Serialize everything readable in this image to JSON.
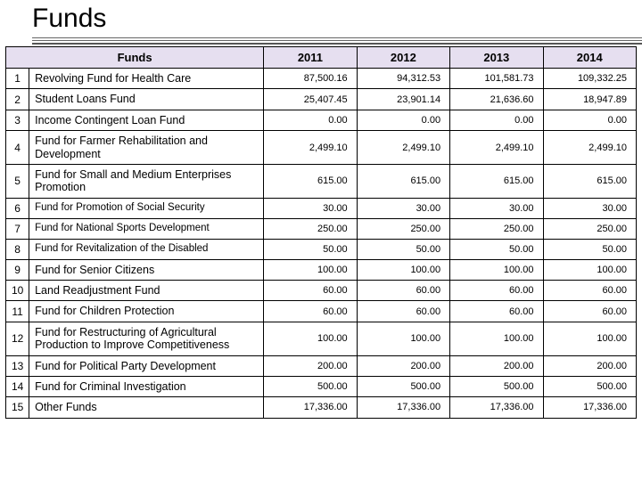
{
  "title": "Funds",
  "table": {
    "header_label": "Funds",
    "columns": [
      "2011",
      "2012",
      "2013",
      "2014"
    ],
    "header_bg": "#e6dff0",
    "border_color": "#000000",
    "rows": [
      {
        "n": "1",
        "name": "Revolving Fund for Health Care",
        "v": [
          "87,500.16",
          "94,312.53",
          "101,581.73",
          "109,332.25"
        ]
      },
      {
        "n": "2",
        "name": "Student Loans Fund",
        "v": [
          "25,407.45",
          "23,901.14",
          "21,636.60",
          "18,947.89"
        ]
      },
      {
        "n": "3",
        "name": "Income Contingent Loan Fund",
        "v": [
          "0.00",
          "0.00",
          "0.00",
          "0.00"
        ]
      },
      {
        "n": "4",
        "name": "Fund for Farmer Rehabilitation and Development",
        "v": [
          "2,499.10",
          "2,499.10",
          "2,499.10",
          "2,499.10"
        ]
      },
      {
        "n": "5",
        "name": "Fund for Small and Medium Enterprises Promotion",
        "v": [
          "615.00",
          "615.00",
          "615.00",
          "615.00"
        ]
      },
      {
        "n": "6",
        "name": "Fund for Promotion of Social Security",
        "v": [
          "30.00",
          "30.00",
          "30.00",
          "30.00"
        ],
        "small": true
      },
      {
        "n": "7",
        "name": "Fund for National Sports Development",
        "v": [
          "250.00",
          "250.00",
          "250.00",
          "250.00"
        ],
        "small": true
      },
      {
        "n": "8",
        "name": "Fund for Revitalization of the Disabled",
        "v": [
          "50.00",
          "50.00",
          "50.00",
          "50.00"
        ],
        "small": true
      },
      {
        "n": "9",
        "name": "Fund for Senior Citizens",
        "v": [
          "100.00",
          "100.00",
          "100.00",
          "100.00"
        ]
      },
      {
        "n": "10",
        "name": "Land Readjustment Fund",
        "v": [
          "60.00",
          "60.00",
          "60.00",
          "60.00"
        ]
      },
      {
        "n": "11",
        "name": "Fund for Children Protection",
        "v": [
          "60.00",
          "60.00",
          "60.00",
          "60.00"
        ]
      },
      {
        "n": "12",
        "name": "Fund for Restructuring of Agricultural Production to Improve Competitiveness",
        "v": [
          "100.00",
          "100.00",
          "100.00",
          "100.00"
        ]
      },
      {
        "n": "13",
        "name": "Fund for Political Party Development",
        "v": [
          "200.00",
          "200.00",
          "200.00",
          "200.00"
        ]
      },
      {
        "n": "14",
        "name": "Fund for Criminal Investigation",
        "v": [
          "500.00",
          "500.00",
          "500.00",
          "500.00"
        ]
      },
      {
        "n": "15",
        "name": "Other Funds",
        "v": [
          "17,336.00",
          "17,336.00",
          "17,336.00",
          "17,336.00"
        ]
      }
    ]
  }
}
